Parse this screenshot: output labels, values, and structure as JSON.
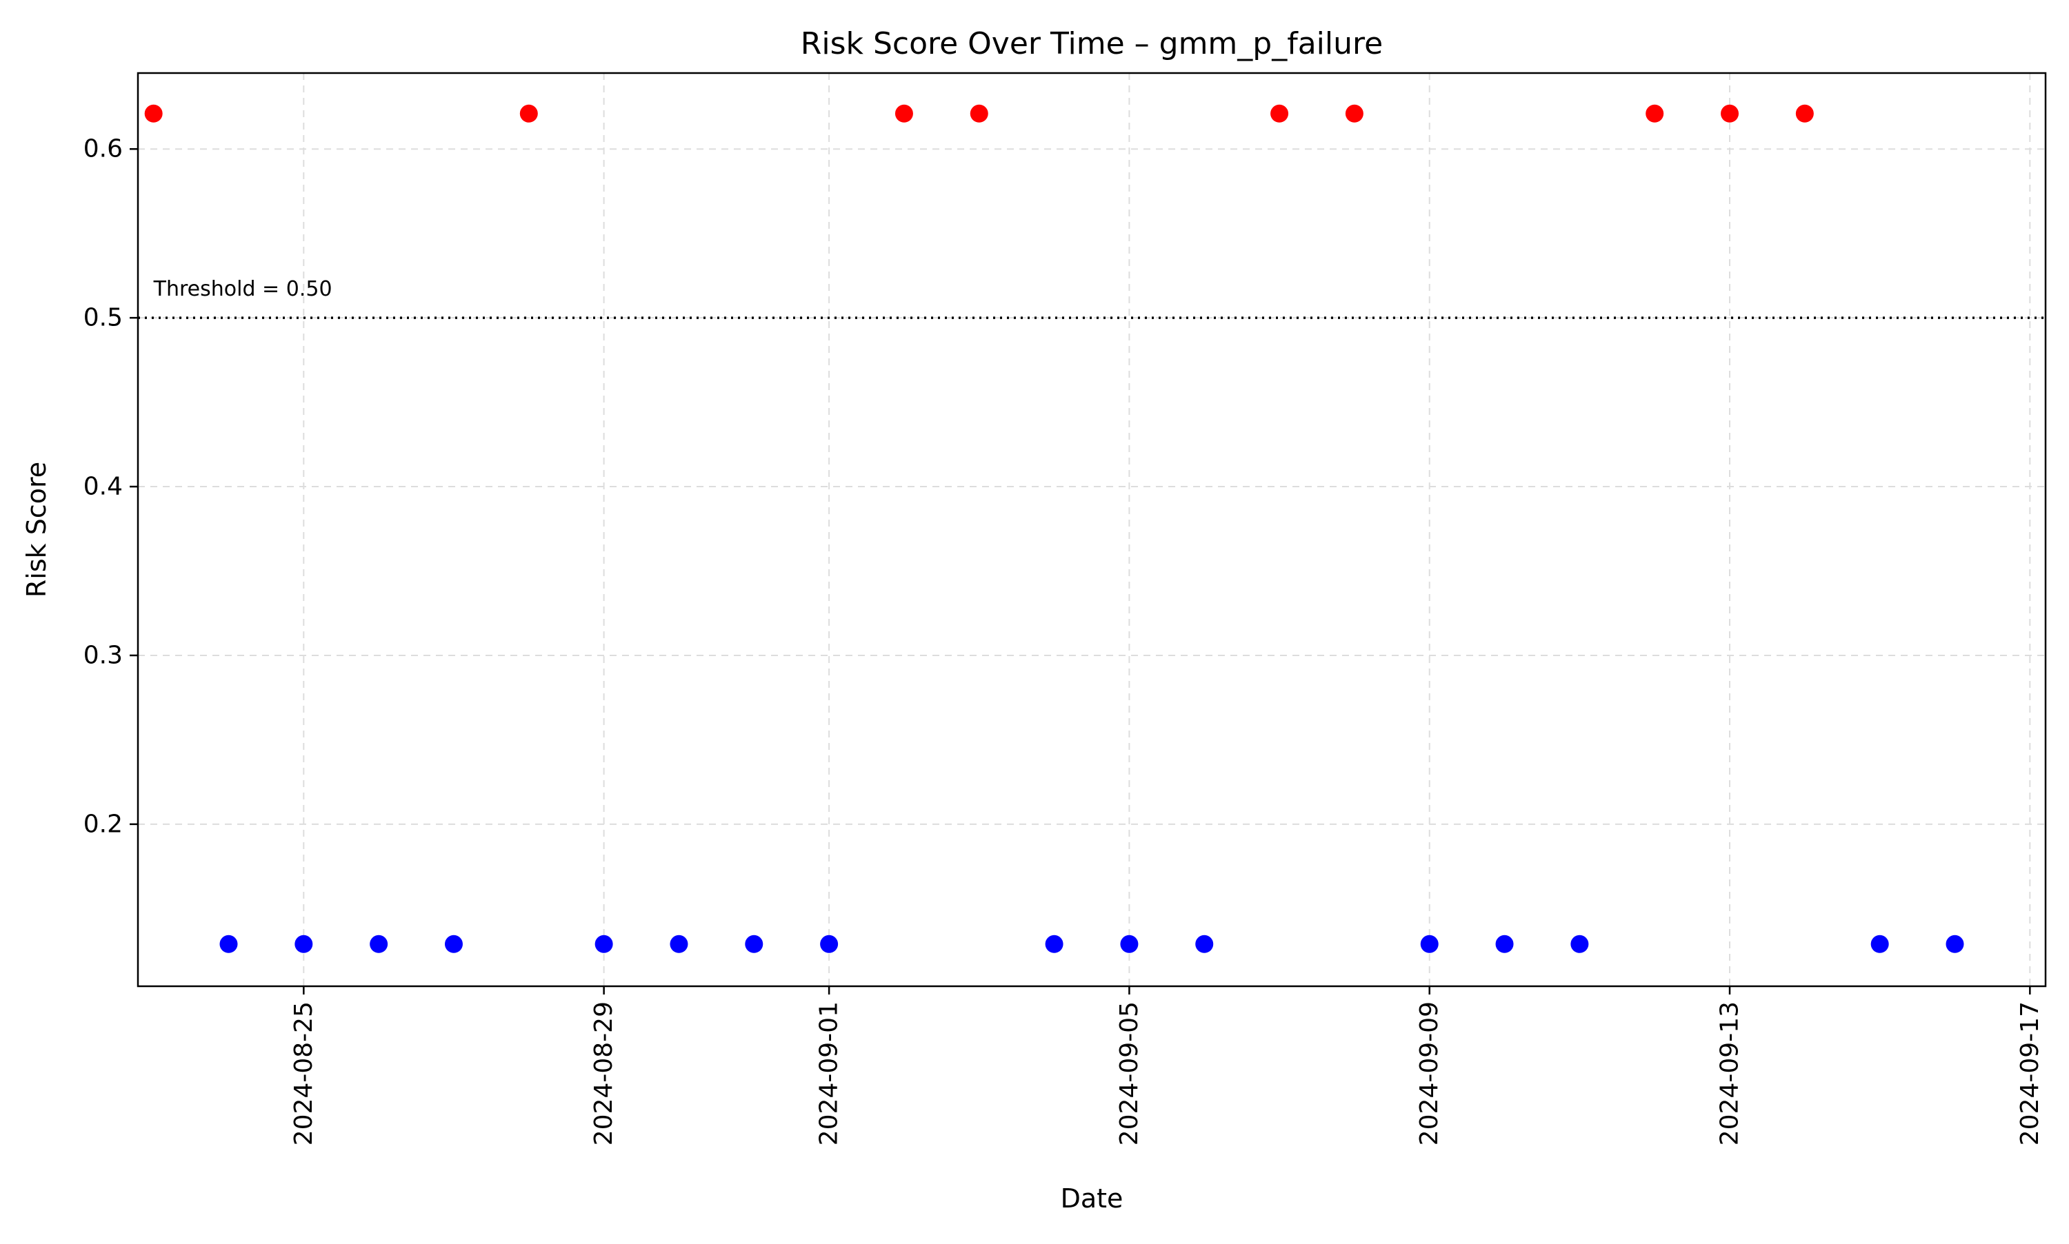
{
  "chart_data": {
    "type": "scatter",
    "title": "Risk Score Over Time – gmm_p_failure",
    "xlabel": "Date",
    "ylabel": "Risk Score",
    "x_axis_type": "date",
    "xlim": [
      "2024-08-22T19:00",
      "2024-09-17T05:00"
    ],
    "ylim": [
      0.104,
      0.645
    ],
    "x_ticks": [
      "2024-08-25",
      "2024-08-29",
      "2024-09-01",
      "2024-09-05",
      "2024-09-09",
      "2024-09-13",
      "2024-09-17"
    ],
    "y_ticks": [
      "0.2",
      "0.3",
      "0.4",
      "0.5",
      "0.6"
    ],
    "grid": true,
    "colors": {
      "above_threshold": "#ff0000",
      "below_threshold": "#0000ff"
    },
    "threshold": {
      "value": 0.5,
      "label": "Threshold = 0.50",
      "style": "dotted"
    },
    "points": [
      {
        "date": "2024-08-23",
        "value": 0.621
      },
      {
        "date": "2024-08-24",
        "value": 0.129
      },
      {
        "date": "2024-08-25",
        "value": 0.129
      },
      {
        "date": "2024-08-26",
        "value": 0.129
      },
      {
        "date": "2024-08-27",
        "value": 0.129
      },
      {
        "date": "2024-08-28",
        "value": 0.621
      },
      {
        "date": "2024-08-29",
        "value": 0.129
      },
      {
        "date": "2024-08-30",
        "value": 0.129
      },
      {
        "date": "2024-08-31",
        "value": 0.129
      },
      {
        "date": "2024-09-01",
        "value": 0.129
      },
      {
        "date": "2024-09-02",
        "value": 0.621
      },
      {
        "date": "2024-09-03",
        "value": 0.621
      },
      {
        "date": "2024-09-04",
        "value": 0.129
      },
      {
        "date": "2024-09-05",
        "value": 0.129
      },
      {
        "date": "2024-09-06",
        "value": 0.129
      },
      {
        "date": "2024-09-07",
        "value": 0.621
      },
      {
        "date": "2024-09-08",
        "value": 0.621
      },
      {
        "date": "2024-09-09",
        "value": 0.129
      },
      {
        "date": "2024-09-10",
        "value": 0.129
      },
      {
        "date": "2024-09-11",
        "value": 0.129
      },
      {
        "date": "2024-09-12",
        "value": 0.621
      },
      {
        "date": "2024-09-13",
        "value": 0.621
      },
      {
        "date": "2024-09-14",
        "value": 0.621
      },
      {
        "date": "2024-09-15",
        "value": 0.129
      },
      {
        "date": "2024-09-16",
        "value": 0.129
      }
    ]
  }
}
